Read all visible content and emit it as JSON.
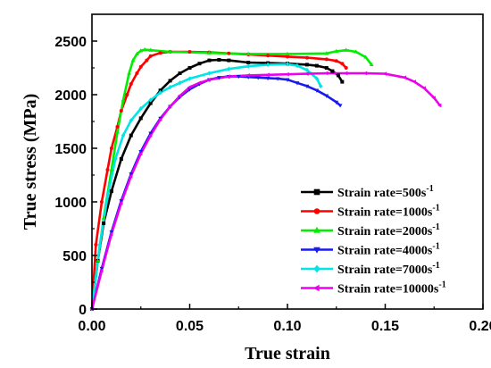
{
  "chart_data": {
    "type": "line",
    "xlabel": "True strain",
    "ylabel": "True stress  (MPa)",
    "xlim": [
      0,
      0.2
    ],
    "ylim": [
      0,
      2750
    ],
    "xticks": [
      "0.00",
      "0.05",
      "0.10",
      "0.15",
      "0.20"
    ],
    "yticks": [
      "0",
      "500",
      "1000",
      "1500",
      "2000",
      "2500"
    ],
    "grid": false,
    "legend_position": "lower-right",
    "series": [
      {
        "name": "Strain rate=500s",
        "superscript": "-1",
        "color": "#000000",
        "marker": "square",
        "x": [
          0,
          0.003,
          0.006,
          0.01,
          0.015,
          0.02,
          0.025,
          0.03,
          0.035,
          0.04,
          0.045,
          0.05,
          0.055,
          0.06,
          0.065,
          0.07,
          0.08,
          0.09,
          0.1,
          0.11,
          0.115,
          0.12,
          0.123,
          0.126,
          0.128
        ],
        "y": [
          0,
          450,
          800,
          1100,
          1400,
          1620,
          1780,
          1920,
          2040,
          2130,
          2200,
          2250,
          2290,
          2320,
          2325,
          2320,
          2300,
          2295,
          2290,
          2280,
          2270,
          2250,
          2220,
          2180,
          2120
        ]
      },
      {
        "name": "Strain rate=1000s",
        "superscript": "-1",
        "color": "#ff0000",
        "marker": "circle",
        "x": [
          0,
          0.002,
          0.005,
          0.008,
          0.01,
          0.013,
          0.015,
          0.018,
          0.02,
          0.023,
          0.025,
          0.028,
          0.03,
          0.035,
          0.04,
          0.05,
          0.06,
          0.07,
          0.08,
          0.09,
          0.1,
          0.11,
          0.12,
          0.125,
          0.128,
          0.13
        ],
        "y": [
          0,
          600,
          1000,
          1300,
          1500,
          1700,
          1850,
          2000,
          2100,
          2200,
          2260,
          2320,
          2360,
          2390,
          2400,
          2400,
          2395,
          2385,
          2375,
          2365,
          2355,
          2345,
          2330,
          2315,
          2290,
          2250
        ]
      },
      {
        "name": "Strain rate=2000s",
        "superscript": "-1",
        "color": "#00ee00",
        "marker": "triangle-up",
        "x": [
          0,
          0.003,
          0.006,
          0.01,
          0.013,
          0.016,
          0.019,
          0.021,
          0.023,
          0.025,
          0.027,
          0.03,
          0.04,
          0.06,
          0.08,
          0.1,
          0.12,
          0.125,
          0.13,
          0.135,
          0.14,
          0.143
        ],
        "y": [
          0,
          450,
          850,
          1300,
          1650,
          1950,
          2200,
          2320,
          2380,
          2410,
          2420,
          2415,
          2400,
          2390,
          2380,
          2380,
          2385,
          2405,
          2415,
          2400,
          2350,
          2280
        ]
      },
      {
        "name": "Strain rate=4000s",
        "superscript": "-1",
        "color": "#1a1aee",
        "marker": "triangle-down",
        "x": [
          0,
          0.005,
          0.01,
          0.015,
          0.02,
          0.025,
          0.03,
          0.035,
          0.04,
          0.045,
          0.05,
          0.055,
          0.06,
          0.065,
          0.07,
          0.075,
          0.08,
          0.085,
          0.09,
          0.095,
          0.1,
          0.105,
          0.11,
          0.115,
          0.12,
          0.125,
          0.127
        ],
        "y": [
          0,
          380,
          720,
          1010,
          1260,
          1470,
          1640,
          1780,
          1890,
          1980,
          2050,
          2100,
          2140,
          2160,
          2170,
          2170,
          2165,
          2160,
          2155,
          2150,
          2140,
          2110,
          2080,
          2040,
          1990,
          1930,
          1900
        ]
      },
      {
        "name": "Strain rate=7000s",
        "superscript": "-1",
        "color": "#00e5e5",
        "marker": "diamond",
        "x": [
          0,
          0.004,
          0.008,
          0.012,
          0.016,
          0.02,
          0.025,
          0.03,
          0.035,
          0.04,
          0.045,
          0.05,
          0.06,
          0.07,
          0.08,
          0.09,
          0.1,
          0.105,
          0.11,
          0.115,
          0.117
        ],
        "y": [
          0,
          600,
          1050,
          1400,
          1620,
          1760,
          1870,
          1950,
          2020,
          2070,
          2110,
          2150,
          2200,
          2240,
          2265,
          2280,
          2285,
          2270,
          2230,
          2150,
          2080
        ]
      },
      {
        "name": "Strain rate=10000s",
        "superscript": "-1",
        "color": "#ee00ee",
        "marker": "triangle-left",
        "x": [
          0,
          0.005,
          0.01,
          0.015,
          0.02,
          0.025,
          0.03,
          0.035,
          0.04,
          0.045,
          0.05,
          0.055,
          0.06,
          0.07,
          0.08,
          0.09,
          0.1,
          0.11,
          0.12,
          0.13,
          0.14,
          0.15,
          0.16,
          0.165,
          0.17,
          0.175,
          0.178
        ],
        "y": [
          0,
          360,
          700,
          990,
          1240,
          1450,
          1620,
          1770,
          1890,
          1990,
          2070,
          2110,
          2140,
          2170,
          2180,
          2185,
          2190,
          2195,
          2200,
          2200,
          2200,
          2195,
          2160,
          2120,
          2060,
          1970,
          1900
        ]
      }
    ]
  }
}
